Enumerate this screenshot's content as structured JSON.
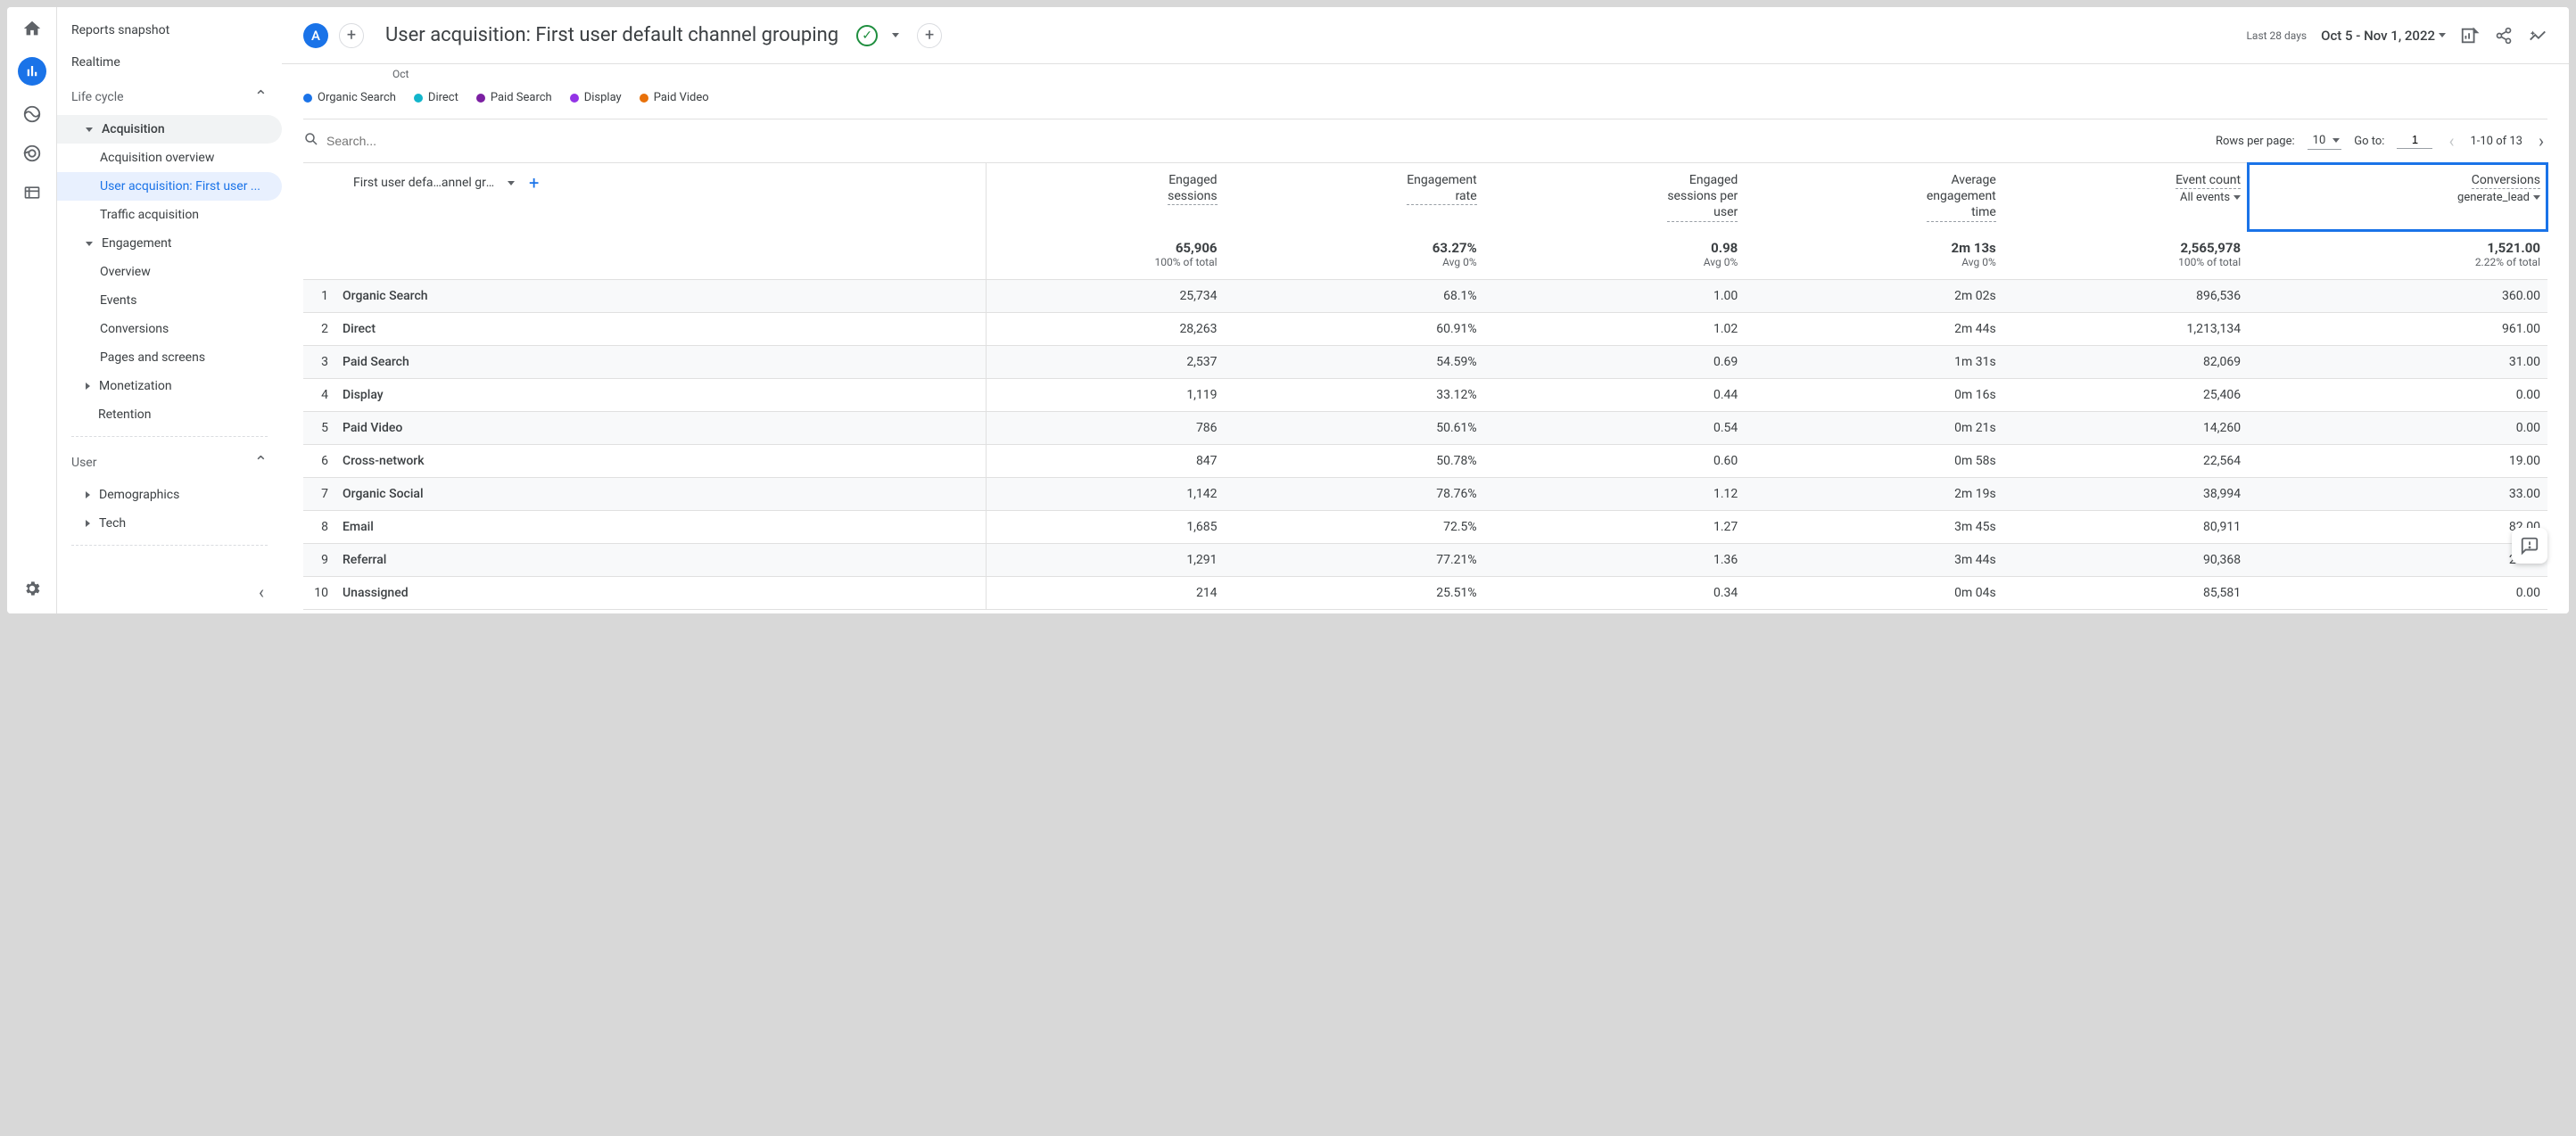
{
  "sidebar": {
    "snapshot": "Reports snapshot",
    "realtime": "Realtime",
    "lifecycle": "Life cycle",
    "acquisition": "Acquisition",
    "acq_overview": "Acquisition overview",
    "user_acq": "User acquisition: First user ...",
    "traffic_acq": "Traffic acquisition",
    "engagement": "Engagement",
    "eng_overview": "Overview",
    "eng_events": "Events",
    "eng_conv": "Conversions",
    "eng_pages": "Pages and screens",
    "monetization": "Monetization",
    "retention": "Retention",
    "user": "User",
    "demographics": "Demographics",
    "tech": "Tech"
  },
  "header": {
    "avatar": "A",
    "title": "User acquisition: First user default channel grouping",
    "date_label": "Last 28 days",
    "date_range": "Oct 5 - Nov 1, 2022"
  },
  "chart": {
    "xlabel": "Oct",
    "legend": [
      {
        "label": "Organic Search",
        "color": "#1a73e8"
      },
      {
        "label": "Direct",
        "color": "#12b5cb"
      },
      {
        "label": "Paid Search",
        "color": "#7b1fa2"
      },
      {
        "label": "Display",
        "color": "#9334e6"
      },
      {
        "label": "Paid Video",
        "color": "#e8710a"
      }
    ]
  },
  "controls": {
    "search_placeholder": "Search...",
    "rows_label": "Rows per page:",
    "rows_value": "10",
    "goto_label": "Go to:",
    "goto_value": "1",
    "range": "1-10 of 13"
  },
  "table": {
    "dimension_label": "First user defa…annel grouping",
    "columns": [
      {
        "h1": "Engaged",
        "h2": "sessions"
      },
      {
        "h1": "Engagement",
        "h2": "rate"
      },
      {
        "h1": "Engaged",
        "h2": "sessions per",
        "h3": "user"
      },
      {
        "h1": "Average",
        "h2": "engagement",
        "h3": "time"
      },
      {
        "h1": "Event count",
        "sub": "All events"
      },
      {
        "h1": "Conversions",
        "sub": "generate_lead",
        "highlight": true
      }
    ],
    "summary": {
      "vals": [
        "65,906",
        "63.27%",
        "0.98",
        "2m 13s",
        "2,565,978",
        "1,521.00"
      ],
      "subs": [
        "100% of total",
        "Avg 0%",
        "Avg 0%",
        "Avg 0%",
        "100% of total",
        "2.22% of total"
      ]
    },
    "rows": [
      {
        "i": "1",
        "name": "Organic Search",
        "v": [
          "25,734",
          "68.1%",
          "1.00",
          "2m 02s",
          "896,536",
          "360.00"
        ]
      },
      {
        "i": "2",
        "name": "Direct",
        "v": [
          "28,263",
          "60.91%",
          "1.02",
          "2m 44s",
          "1,213,134",
          "961.00"
        ]
      },
      {
        "i": "3",
        "name": "Paid Search",
        "v": [
          "2,537",
          "54.59%",
          "0.69",
          "1m 31s",
          "82,069",
          "31.00"
        ]
      },
      {
        "i": "4",
        "name": "Display",
        "v": [
          "1,119",
          "33.12%",
          "0.44",
          "0m 16s",
          "25,406",
          "0.00"
        ]
      },
      {
        "i": "5",
        "name": "Paid Video",
        "v": [
          "786",
          "50.61%",
          "0.54",
          "0m 21s",
          "14,260",
          "0.00"
        ]
      },
      {
        "i": "6",
        "name": "Cross-network",
        "v": [
          "847",
          "50.78%",
          "0.60",
          "0m 58s",
          "22,564",
          "19.00"
        ]
      },
      {
        "i": "7",
        "name": "Organic Social",
        "v": [
          "1,142",
          "78.76%",
          "1.12",
          "2m 19s",
          "38,994",
          "33.00"
        ]
      },
      {
        "i": "8",
        "name": "Email",
        "v": [
          "1,685",
          "72.5%",
          "1.27",
          "3m 45s",
          "80,911",
          "82.00"
        ]
      },
      {
        "i": "9",
        "name": "Referral",
        "v": [
          "1,291",
          "77.21%",
          "1.36",
          "3m 44s",
          "90,368",
          "29.00"
        ]
      },
      {
        "i": "10",
        "name": "Unassigned",
        "v": [
          "214",
          "25.51%",
          "0.34",
          "0m 04s",
          "85,581",
          "0.00"
        ]
      }
    ]
  }
}
